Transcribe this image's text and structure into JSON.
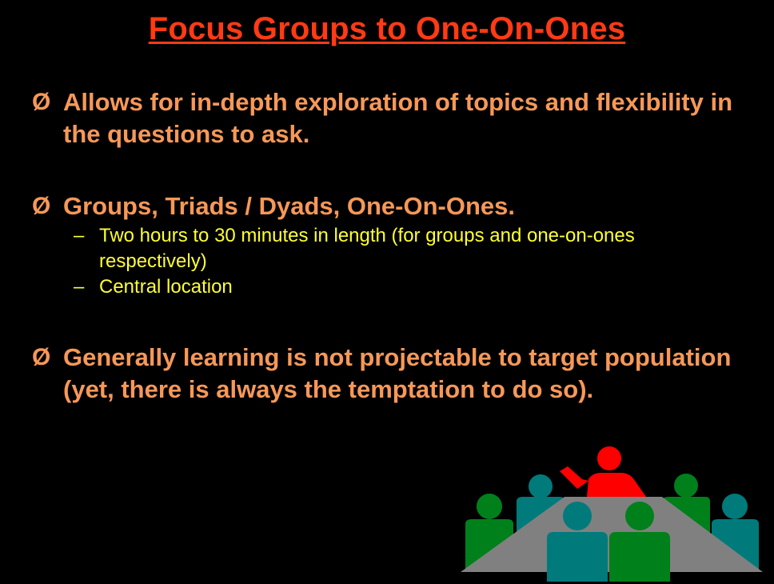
{
  "slide": {
    "title": "Focus Groups to One-On-Ones",
    "bullet_marker": "Ø",
    "sub_marker": "–",
    "bullets": [
      {
        "text": "Allows for in-depth exploration of topics and flexibility in the questions to ask."
      },
      {
        "text": "Groups, Triads / Dyads, One-On-Ones.",
        "sub_items": [
          "Two hours to 30 minutes in length (for groups and one-on-ones respectively)",
          "Central location"
        ]
      },
      {
        "text": "Generally learning is not projectable to target population (yet, there is always the temptation to do so)."
      }
    ]
  },
  "colors": {
    "background": "#000000",
    "title": "#ff3a14",
    "bullet_text": "#f79858",
    "sub_text": "#ffff33",
    "presenter": "#ff0000",
    "teal_person": "#007a7a",
    "green_person": "#00801a",
    "table": "#808080"
  },
  "clipart": {
    "icon": "meeting-table-icon"
  }
}
